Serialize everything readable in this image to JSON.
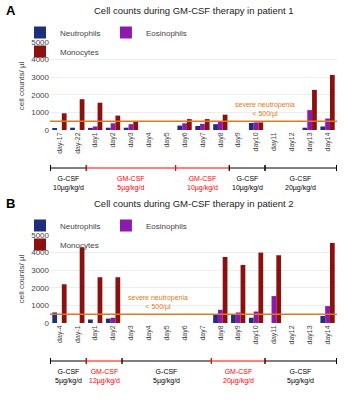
{
  "chart_data": [
    {
      "type": "bar",
      "panel_label": "A",
      "title": "Cell counts during GM-CSF therapy in patient 1",
      "y_label": "cell counts/ µl",
      "categories": [
        "day-17",
        "day-22",
        "day1",
        "day2",
        "day3",
        "day4",
        "day5",
        "day6",
        "day7",
        "day8",
        "day9",
        "day10",
        "day11",
        "day12",
        "day13",
        "day14"
      ],
      "series": [
        {
          "name": "Neutrophils",
          "color": "#1f2f7a",
          "values": [
            100,
            130,
            120,
            130,
            130,
            0,
            0,
            250,
            230,
            330,
            0,
            400,
            0,
            0,
            130,
            200
          ]
        },
        {
          "name": "Eosinophils",
          "color": "#8b1aad",
          "values": [
            0,
            0,
            200,
            380,
            330,
            0,
            0,
            380,
            350,
            480,
            0,
            430,
            0,
            0,
            1130,
            650
          ]
        },
        {
          "name": "Monocytes",
          "color": "#8b1010",
          "values": [
            950,
            1750,
            1550,
            820,
            480,
            0,
            0,
            620,
            620,
            870,
            0,
            430,
            0,
            0,
            2280,
            3130
          ]
        }
      ],
      "ylim": [
        0,
        5000
      ],
      "yticks": [
        0,
        1000,
        2000,
        3000,
        4000,
        5000
      ],
      "grid": true,
      "legend": "top",
      "threshold": {
        "value": 500,
        "label": "severe neutropenia\n< 500/µl",
        "color": "#e07820"
      },
      "annotations": [
        {
          "text": "G-CSF\n10µg/kg/d",
          "color": "black",
          "from": "day-17",
          "to": "day-22"
        },
        {
          "text": "GM-CSF\n5µg/kg/d",
          "color": "red",
          "from": "day1",
          "to": "day5"
        },
        {
          "text": "GM-CSF\n10µg/kg/d",
          "color": "red",
          "from": "day6",
          "to": "day8"
        },
        {
          "text": "G-CSF\n10µg/kg/d",
          "color": "black",
          "from": "day9",
          "to": "day10"
        },
        {
          "text": "G-CSF\n20µg/kg/d",
          "color": "black",
          "from": "day11",
          "to": "day14"
        }
      ]
    },
    {
      "type": "bar",
      "panel_label": "B",
      "title": "Cell counts during GM-CSF therapy in patient 2",
      "y_label": "cell counts/ µl",
      "categories": [
        "day-4",
        "day-1",
        "day1",
        "day2",
        "day3",
        "day4",
        "day5",
        "day6",
        "day7",
        "day8",
        "day9",
        "day10",
        "day11",
        "day12",
        "day13",
        "day14"
      ],
      "series": [
        {
          "name": "Neutrophils",
          "color": "#1f2f7a",
          "values": [
            600,
            0,
            200,
            250,
            0,
            0,
            0,
            0,
            0,
            500,
            470,
            300,
            0,
            0,
            0,
            400
          ]
        },
        {
          "name": "Eosinophils",
          "color": "#8b1aad",
          "values": [
            0,
            0,
            0,
            300,
            0,
            0,
            0,
            0,
            0,
            750,
            600,
            650,
            1530,
            0,
            0,
            960
          ]
        },
        {
          "name": "Monocytes",
          "color": "#8b1010",
          "values": [
            2200,
            4300,
            2600,
            2600,
            0,
            0,
            0,
            0,
            0,
            3750,
            3300,
            4000,
            3850,
            0,
            0,
            4550
          ]
        }
      ],
      "ylim": [
        0,
        5000
      ],
      "yticks": [
        0,
        1000,
        2000,
        3000,
        4000,
        5000
      ],
      "grid": true,
      "legend": "top",
      "threshold": {
        "value": 500,
        "label": "severe neutropenia\n< 500/µl",
        "color": "#e07820"
      },
      "annotations": [
        {
          "text": "G-CSF\n5µg/kg/d",
          "color": "black",
          "from": "day-4",
          "to": "day-1"
        },
        {
          "text": "GM-CSF\n12µg/kg/d",
          "color": "red",
          "from": "day1",
          "to": "day2"
        },
        {
          "text": "G-CSF\n5µg/kg/d",
          "color": "black",
          "from": "day3",
          "to": "day7"
        },
        {
          "text": "GM-CSF\n20µg/kg/d",
          "color": "red",
          "from": "day8",
          "to": "day10"
        },
        {
          "text": "G-CSF\n5µg/kg/d",
          "color": "black",
          "from": "day11",
          "to": "day14"
        }
      ]
    }
  ]
}
